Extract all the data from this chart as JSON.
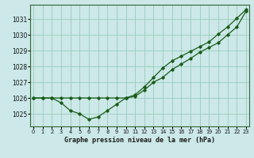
{
  "title": "Graphe pression niveau de la mer (hPa)",
  "background_color": "#cce8e8",
  "grid_color": "#99ccbb",
  "line_color": "#1a5c1a",
  "x_ticks": [
    0,
    1,
    2,
    3,
    4,
    5,
    6,
    7,
    8,
    9,
    10,
    11,
    12,
    13,
    14,
    15,
    16,
    17,
    18,
    19,
    20,
    21,
    22,
    23
  ],
  "y_ticks": [
    1025,
    1026,
    1027,
    1028,
    1029,
    1030,
    1031
  ],
  "ylim": [
    1024.2,
    1031.9
  ],
  "xlim": [
    -0.3,
    23.3
  ],
  "line1_x": [
    0,
    1,
    2,
    3,
    4,
    5,
    6,
    7,
    8,
    9,
    10,
    11,
    12,
    13,
    14,
    15,
    16,
    17,
    18,
    19,
    20,
    21,
    22,
    23
  ],
  "line1_y": [
    1026.0,
    1026.0,
    1026.0,
    1025.7,
    1025.2,
    1025.0,
    1024.65,
    1024.8,
    1025.2,
    1025.6,
    1026.0,
    1026.1,
    1026.5,
    1027.0,
    1027.3,
    1027.8,
    1028.15,
    1028.5,
    1028.9,
    1029.2,
    1029.5,
    1030.0,
    1030.5,
    1031.5
  ],
  "line2_x": [
    0,
    1,
    2,
    3,
    4,
    5,
    6,
    7,
    8,
    9,
    10,
    11,
    12,
    13,
    14,
    15,
    16,
    17,
    18,
    19,
    20,
    21,
    22,
    23
  ],
  "line2_y": [
    1026.0,
    1026.0,
    1026.0,
    1026.0,
    1026.0,
    1026.0,
    1026.0,
    1026.0,
    1026.0,
    1026.0,
    1026.0,
    1026.2,
    1026.7,
    1027.3,
    1027.9,
    1028.35,
    1028.65,
    1028.95,
    1029.25,
    1029.55,
    1030.05,
    1030.5,
    1031.05,
    1031.6
  ]
}
